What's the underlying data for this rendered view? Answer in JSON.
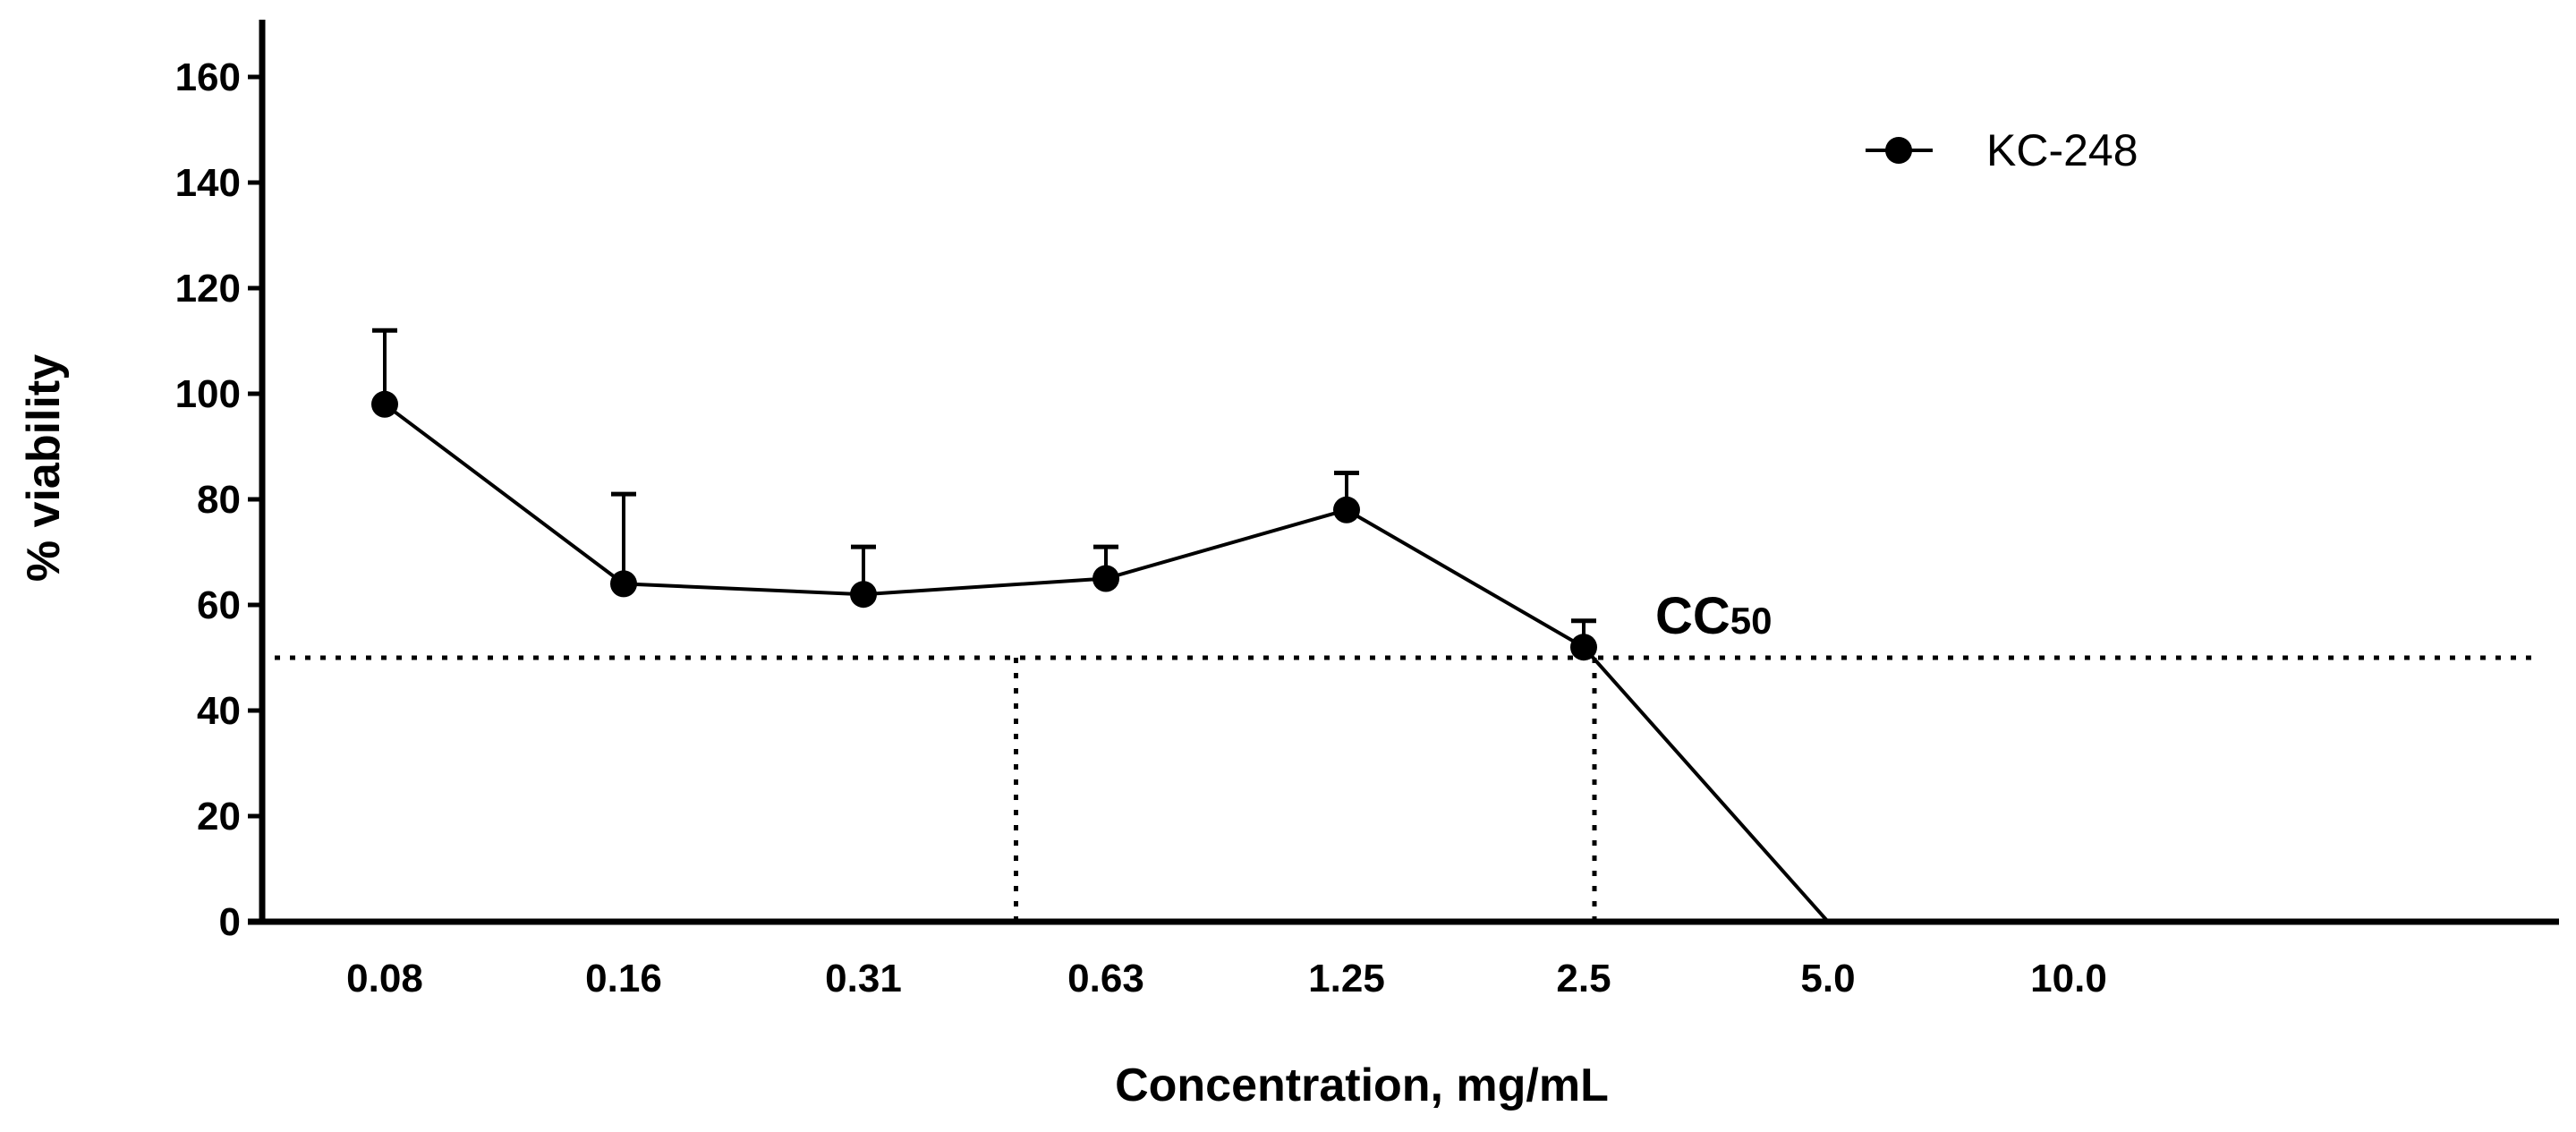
{
  "chart_data": {
    "type": "line",
    "title": "",
    "xlabel": "Concentration, mg/mL",
    "ylabel": "% viability",
    "categories": [
      "0.08",
      "0.16",
      "0.31",
      "0.63",
      "1.25",
      "2.5",
      "5.0",
      "10.0"
    ],
    "ylim": [
      0,
      170
    ],
    "yticks": [
      0,
      20,
      40,
      60,
      80,
      100,
      120,
      140,
      160
    ],
    "legend_position": "top-right",
    "series": [
      {
        "name": "KC-248",
        "values": [
          98,
          64,
          62,
          65,
          78,
          52,
          0,
          null
        ],
        "error_upper": [
          14,
          17,
          9,
          6,
          7,
          5,
          0,
          null
        ]
      }
    ],
    "reference_line": {
      "y": 50,
      "style": "dotted"
    },
    "reference_verticals": [
      {
        "x_position": "between 0.31 and 0.63",
        "style": "dotted"
      },
      {
        "x_position": "2.5",
        "style": "dotted"
      }
    ],
    "annotation": {
      "text": "CC",
      "subscript": "50"
    }
  }
}
